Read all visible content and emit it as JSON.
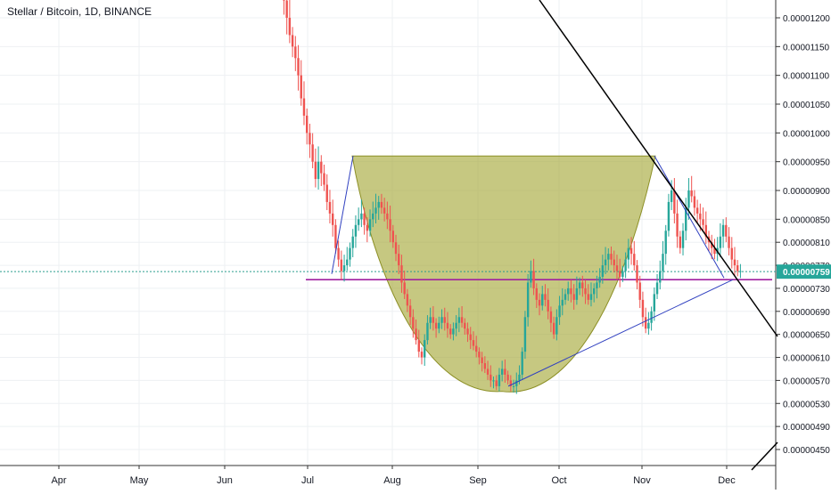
{
  "chart_data": {
    "type": "candlestick",
    "title": "Stellar / Bitcoin, 1D, BINANCE",
    "x_tick_labels": [
      "Apr",
      "May",
      "Jun",
      "Jul",
      "Aug",
      "Sep",
      "Oct",
      "Nov",
      "Dec"
    ],
    "y_tick_labels": [
      "0.00001200",
      "0.00001150",
      "0.00001100",
      "0.00001050",
      "0.00001000",
      "0.00000950",
      "0.00000900",
      "0.00000850",
      "0.00000810",
      "0.00000770",
      "0.00000730",
      "0.00000690",
      "0.00000650",
      "0.00000610",
      "0.00000570",
      "0.00000530",
      "0.00000490",
      "0.00000450"
    ],
    "last_price_label": "0.00000759",
    "last_price": 7.59e-06,
    "y_scale": "log",
    "grid": true,
    "candles_close": [
      1.29e-05,
      1.26e-05,
      1.23e-05,
      1.2e-05,
      1.17e-05,
      1.15e-05,
      1.13e-05,
      1.1e-05,
      1.06e-05,
      1.03e-05,
      1e-05,
      9.8e-06,
      9.5e-06,
      9.2e-06,
      9.5e-06,
      9.3e-06,
      9.1e-06,
      8.8e-06,
      8.6e-06,
      8.4e-06,
      8e-06,
      7.8e-06,
      7.6e-06,
      7.7e-06,
      7.8e-06,
      8e-06,
      8.2e-06,
      8.4e-06,
      8.5e-06,
      8.6e-06,
      8.4e-06,
      8.3e-06,
      8.5e-06,
      8.6e-06,
      8.7e-06,
      8.8e-06,
      8.7e-06,
      8.6e-06,
      8.5e-06,
      8.3e-06,
      8.1e-06,
      7.9e-06,
      7.7e-06,
      7.4e-06,
      7.2e-06,
      7e-06,
      6.8e-06,
      6.6e-06,
      6.4e-06,
      6.2e-06,
      6.1e-06,
      6.4e-06,
      6.7e-06,
      6.8e-06,
      6.7e-06,
      6.6e-06,
      6.7e-06,
      6.8e-06,
      6.7e-06,
      6.6e-06,
      6.5e-06,
      6.6e-06,
      6.7e-06,
      6.8e-06,
      6.7e-06,
      6.6e-06,
      6.5e-06,
      6.4e-06,
      6.3e-06,
      6.2e-06,
      6.1e-06,
      6e-06,
      5.9e-06,
      5.8e-06,
      5.7e-06,
      5.7e-06,
      5.6e-06,
      5.8e-06,
      5.9e-06,
      5.8e-06,
      5.7e-06,
      5.6e-06,
      5.6e-06,
      5.7e-06,
      5.8e-06,
      6.2e-06,
      6.8e-06,
      7.4e-06,
      7.6e-06,
      7.3e-06,
      7.1e-06,
      7e-06,
      7.2e-06,
      7.1e-06,
      6.9e-06,
      6.7e-06,
      6.5e-06,
      6.8e-06,
      7e-06,
      7.1e-06,
      7.2e-06,
      7.3e-06,
      7.2e-06,
      7.1e-06,
      7.3e-06,
      7.4e-06,
      7.3e-06,
      7.2e-06,
      7.1e-06,
      7.2e-06,
      7.3e-06,
      7.4e-06,
      7.5e-06,
      7.7e-06,
      7.8e-06,
      7.9e-06,
      7.8e-06,
      7.7e-06,
      7.6e-06,
      7.5e-06,
      7.6e-06,
      7.8e-06,
      8e-06,
      7.9e-06,
      7.7e-06,
      7.4e-06,
      7.1e-06,
      6.8e-06,
      6.6e-06,
      6.7e-06,
      6.9e-06,
      7.2e-06,
      7.4e-06,
      7.6e-06,
      7.9e-06,
      8.3e-06,
      8.8e-06,
      9e-06,
      8.6e-06,
      8.2e-06,
      8e-06,
      8.3e-06,
      8.7e-06,
      9e-06,
      8.9e-06,
      8.7e-06,
      8.6e-06,
      8.5e-06,
      8.4e-06,
      8.2e-06,
      8.1e-06,
      8e-06,
      7.9e-06,
      8e-06,
      8.2e-06,
      8.4e-06,
      8.2e-06,
      8e-06,
      7.8e-06,
      7.7e-06,
      7.6e-06,
      7.6e-06
    ],
    "annotations": [
      {
        "type": "cup-and-handle shape",
        "color": "#a3a633"
      },
      {
        "type": "horizontal support line",
        "level": 7.45e-06,
        "color": "#a020a0"
      },
      {
        "type": "rising trendline",
        "from": 5.6e-06,
        "to": 7.45e-06,
        "color": "#3040c0"
      },
      {
        "type": "falling trendline",
        "color": "#000000"
      }
    ]
  }
}
